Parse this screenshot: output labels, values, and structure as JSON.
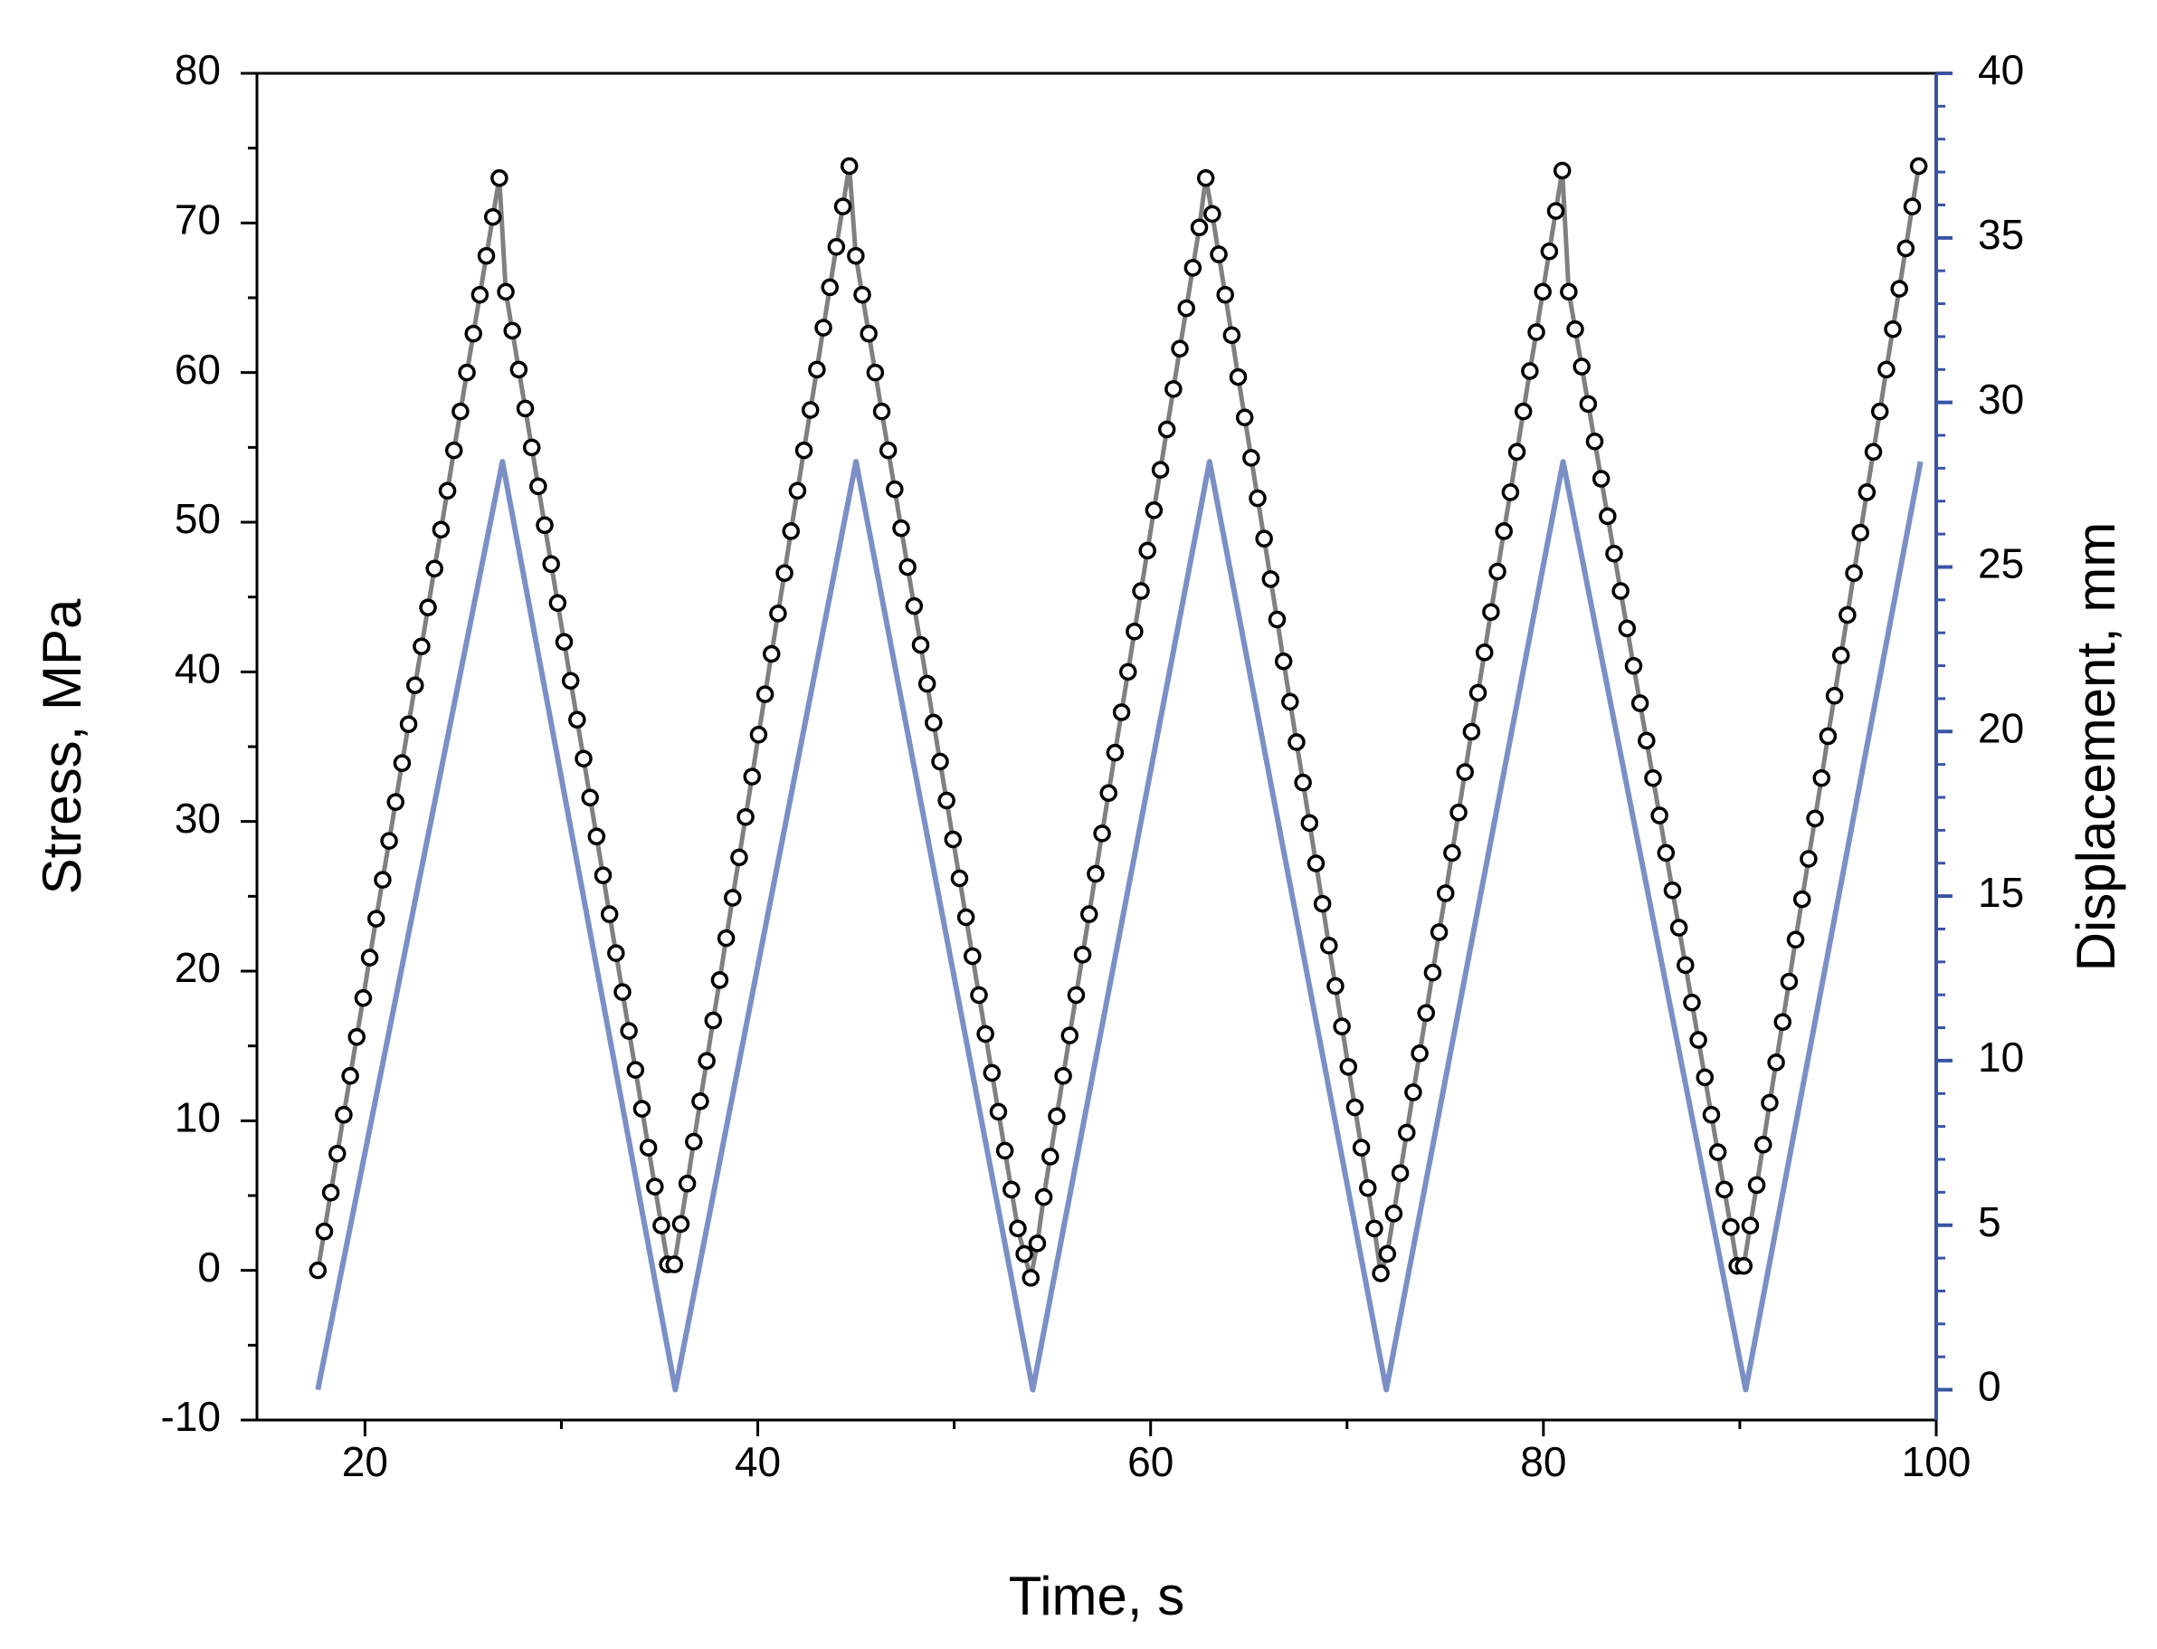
{
  "chart_data": {
    "type": "line",
    "xlabel": "Time, s",
    "ylabel": "Stress, MPa",
    "y2label": "Displacement, mm",
    "xlim": [
      14.5,
      100
    ],
    "xticks": [
      20,
      40,
      60,
      80,
      100
    ],
    "xminorticks": [
      30,
      50,
      70,
      90
    ],
    "ylim": [
      -10,
      80
    ],
    "yticks": [
      -10,
      0,
      10,
      20,
      30,
      40,
      50,
      60,
      70,
      80
    ],
    "yminorticks": [
      -5,
      5,
      15,
      25,
      35,
      45,
      55,
      65,
      75
    ],
    "y2lim": [
      -0.92,
      40
    ],
    "y2ticks": [
      0,
      5,
      10,
      15,
      20,
      25,
      30,
      35,
      40
    ],
    "y2minorticks": [
      1,
      2,
      3,
      4,
      6,
      7,
      8,
      9,
      11,
      12,
      13,
      14,
      16,
      17,
      18,
      19,
      21,
      22,
      23,
      24,
      26,
      27,
      28,
      29,
      31,
      32,
      33,
      34,
      36,
      37,
      38,
      39
    ],
    "axis_color": "#000000",
    "y2_axis_color": "#3953a4",
    "series": [
      {
        "name": "Stress",
        "color": "#808080",
        "marker_color": "#000000",
        "marker": "circle",
        "x": [
          17.6,
          17.93,
          18.26,
          18.59,
          18.92,
          19.25,
          19.58,
          19.91,
          20.24,
          20.57,
          20.9,
          21.23,
          21.56,
          21.89,
          22.22,
          22.55,
          22.88,
          23.21,
          23.54,
          23.87,
          24.2,
          24.53,
          24.86,
          25.19,
          25.52,
          25.85,
          26.18,
          26.51,
          26.84,
          27.17,
          27.5,
          27.83,
          28.16,
          28.49,
          28.82,
          29.15,
          29.48,
          29.81,
          30.14,
          30.47,
          30.8,
          31.13,
          31.46,
          31.79,
          32.12,
          32.45,
          32.78,
          33.11,
          33.44,
          33.77,
          34.1,
          34.43,
          34.76,
          35.09,
          35.42,
          35.75,
          36.08,
          36.41,
          36.74,
          37.07,
          37.4,
          37.73,
          38.06,
          38.39,
          38.72,
          39.05,
          39.38,
          39.71,
          40.04,
          40.37,
          40.7,
          41.03,
          41.36,
          41.69,
          42.02,
          42.35,
          42.68,
          43.01,
          43.34,
          43.67,
          44,
          44.33,
          44.66,
          44.99,
          45.32,
          45.65,
          45.98,
          46.31,
          46.64,
          46.97,
          47.3,
          47.63,
          47.96,
          48.29,
          48.62,
          48.95,
          49.28,
          49.61,
          49.94,
          50.27,
          50.6,
          50.93,
          51.26,
          51.59,
          51.92,
          52.25,
          52.58,
          52.91,
          53.24,
          53.57,
          53.9,
          54.23,
          54.56,
          54.89,
          55.22,
          55.55,
          55.88,
          56.21,
          56.54,
          56.87,
          57.2,
          57.53,
          57.86,
          58.19,
          58.52,
          58.85,
          59.18,
          59.51,
          59.84,
          60.17,
          60.5,
          60.83,
          61.16,
          61.49,
          61.82,
          62.15,
          62.48,
          62.81,
          63.14,
          63.47,
          63.8,
          64.13,
          64.46,
          64.79,
          65.12,
          65.45,
          65.78,
          66.11,
          66.44,
          66.77,
          67.1,
          67.43,
          67.76,
          68.09,
          68.42,
          68.75,
          69.08,
          69.41,
          69.74,
          70.07,
          70.4,
          70.73,
          71.06,
          71.39,
          71.72,
          72.05,
          72.38,
          72.71,
          73.04,
          73.37,
          73.7,
          74.03,
          74.36,
          74.69,
          75.02,
          75.35,
          75.68,
          76.01,
          76.34,
          76.67,
          77,
          77.33,
          77.66,
          77.99,
          78.32,
          78.65,
          78.98,
          79.31,
          79.64,
          79.97,
          80.3,
          80.63,
          80.96,
          81.29,
          81.62,
          81.95,
          82.28,
          82.61,
          82.94,
          83.27,
          83.6,
          83.93,
          84.26,
          84.59,
          84.92,
          85.25,
          85.58,
          85.91,
          86.24,
          86.57,
          86.9,
          87.23,
          87.56,
          87.89,
          88.22,
          88.55,
          88.88,
          89.21,
          89.54,
          89.87,
          90.2,
          90.53,
          90.86,
          91.19,
          91.52,
          91.85,
          92.18,
          92.51,
          92.84,
          93.17,
          93.5,
          93.83,
          94.16,
          94.49,
          94.82,
          95.15,
          95.48,
          95.81,
          96.14,
          96.47,
          96.8,
          97.13,
          97.46,
          97.79,
          98.12,
          98.45,
          98.78,
          99.11
        ],
        "values": [
          0,
          2.6,
          5.2,
          7.8,
          10.4,
          13,
          15.6,
          18.2,
          20.9,
          23.5,
          26.1,
          28.7,
          31.3,
          33.9,
          36.5,
          39.1,
          41.7,
          44.3,
          46.9,
          49.5,
          52.1,
          54.8,
          57.4,
          60,
          62.6,
          65.2,
          67.8,
          70.4,
          73,
          65.4,
          62.8,
          60.2,
          57.6,
          55,
          52.4,
          49.8,
          47.2,
          44.6,
          42,
          39.4,
          36.8,
          34.2,
          31.6,
          29,
          26.4,
          23.8,
          21.2,
          18.6,
          16,
          13.4,
          10.8,
          8.2,
          5.6,
          3,
          0.4,
          0.4,
          3.1,
          5.8,
          8.6,
          11.3,
          14,
          16.7,
          19.4,
          22.2,
          24.9,
          27.6,
          30.3,
          33,
          35.8,
          38.5,
          41.2,
          43.9,
          46.6,
          49.4,
          52.1,
          54.8,
          57.5,
          60.2,
          63,
          65.7,
          68.4,
          71.1,
          73.8,
          67.8,
          65.2,
          62.6,
          60,
          57.4,
          54.8,
          52.2,
          49.6,
          47,
          44.4,
          41.8,
          39.2,
          36.6,
          34,
          31.4,
          28.8,
          26.2,
          23.6,
          21,
          18.4,
          15.8,
          13.2,
          10.6,
          8,
          5.4,
          2.8,
          1.1,
          -0.5,
          1.8,
          4.9,
          7.6,
          10.3,
          13,
          15.7,
          18.4,
          21.1,
          23.8,
          26.5,
          29.2,
          31.9,
          34.6,
          37.3,
          40,
          42.7,
          45.4,
          48.1,
          50.8,
          53.5,
          56.2,
          58.9,
          61.6,
          64.3,
          67,
          69.7,
          73,
          70.6,
          67.9,
          65.2,
          62.5,
          59.7,
          57,
          54.3,
          51.6,
          48.9,
          46.2,
          43.5,
          40.7,
          38,
          35.3,
          32.6,
          29.9,
          27.2,
          24.5,
          21.7,
          19,
          16.3,
          13.6,
          10.9,
          8.2,
          5.5,
          2.8,
          -0.2,
          1.1,
          3.8,
          6.5,
          9.2,
          11.9,
          14.5,
          17.2,
          19.9,
          22.6,
          25.2,
          27.9,
          30.6,
          33.3,
          36,
          38.6,
          41.3,
          44,
          46.7,
          49.4,
          52,
          54.7,
          57.4,
          60.1,
          62.7,
          65.4,
          68.1,
          70.8,
          73.5,
          65.4,
          62.9,
          60.4,
          57.9,
          55.4,
          52.9,
          50.4,
          47.9,
          45.4,
          42.9,
          40.4,
          37.9,
          35.4,
          32.9,
          30.4,
          27.9,
          25.4,
          22.9,
          20.4,
          17.9,
          15.4,
          12.9,
          10.4,
          7.9,
          5.4,
          2.9,
          0.3,
          0.3,
          3,
          5.7,
          8.4,
          11.2,
          13.9,
          16.6,
          19.3,
          22.1,
          24.8,
          27.5,
          30.2,
          32.9,
          35.7,
          38.4,
          41.1,
          43.8,
          46.6,
          49.3,
          52,
          54.7,
          57.4,
          60.2,
          62.9,
          65.6,
          68.3,
          71.1,
          73.8
        ]
      },
      {
        "name": "Displacement",
        "color": "#7b8fc7",
        "axis": "y2",
        "x": [
          17.6,
          27,
          35.8,
          45,
          54,
          63,
          72,
          81,
          90.3,
          99.2
        ],
        "values": [
          0,
          28.2,
          0,
          28.2,
          0,
          28.2,
          0,
          28.2,
          0,
          28.2
        ]
      }
    ]
  }
}
